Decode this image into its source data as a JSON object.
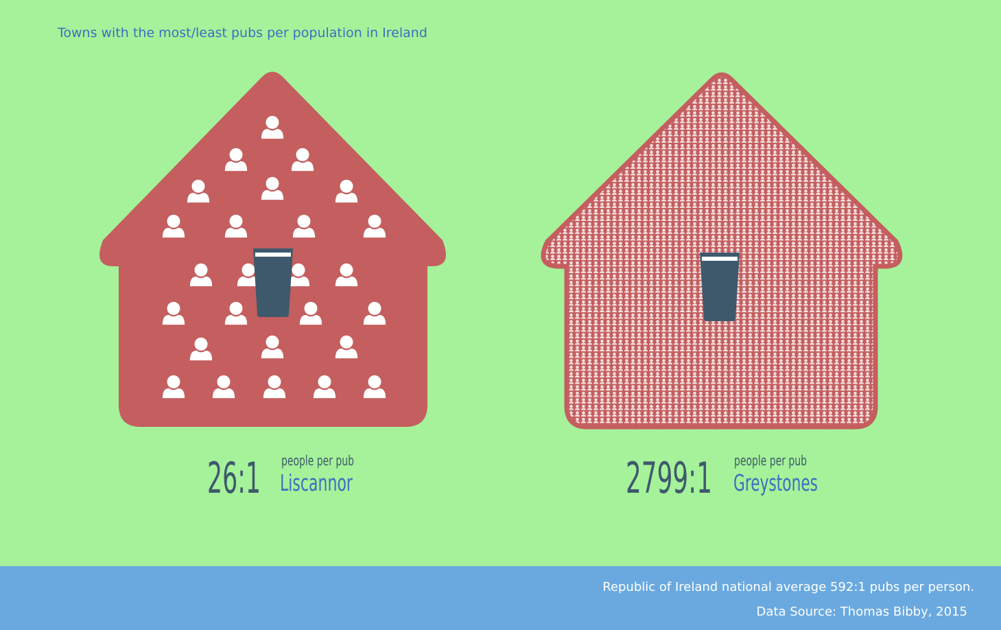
{
  "header": {
    "title": "Towns with the most/least pubs per population in Ireland"
  },
  "towns": [
    {
      "ratio": "26:1",
      "unit": "people per pub",
      "name": "Liscannor"
    },
    {
      "ratio": "2799:1",
      "unit": "people per pub",
      "name": "Greystones"
    }
  ],
  "footer": {
    "note": "Republic of Ireland national average 592:1 pubs per person.",
    "source": "Data Source: Thomas Bibby, 2015"
  }
}
